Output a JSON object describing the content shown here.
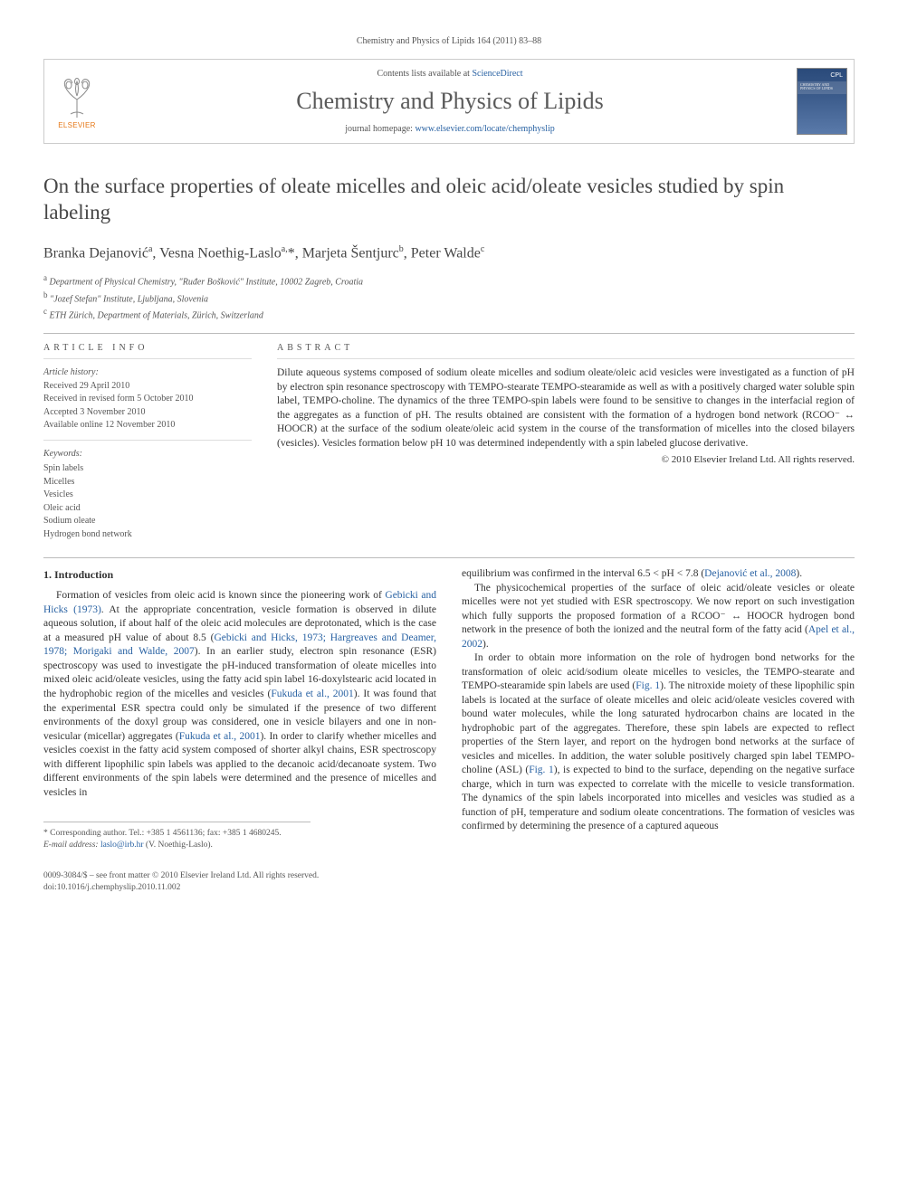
{
  "citation": "Chemistry and Physics of Lipids 164 (2011) 83–88",
  "header": {
    "contents_prefix": "Contents lists available at ",
    "contents_link": "ScienceDirect",
    "journal_title": "Chemistry and Physics of Lipids",
    "homepage_prefix": "journal homepage: ",
    "homepage_url": "www.elsevier.com/locate/chemphyslip",
    "elsevier_label": "ELSEVIER",
    "cover_cpl": "CPL",
    "cover_band": "CHEMISTRY AND PHYSICS OF LIPIDS"
  },
  "title": "On the surface properties of oleate micelles and oleic acid/oleate vesicles studied by spin labeling",
  "authors_html": "Branka Dejanović<sup>a</sup>, Vesna Noethig-Laslo<sup>a,</sup>*, Marjeta Šentjurc<sup>b</sup>, Peter Walde<sup>c</sup>",
  "affiliations": [
    {
      "label": "a",
      "text": "Department of Physical Chemistry, \"Ruđer Bošković\" Institute, 10002 Zagreb, Croatia"
    },
    {
      "label": "b",
      "text": "\"Jozef Stefan\" Institute, Ljubljana, Slovenia"
    },
    {
      "label": "c",
      "text": "ETH Zürich, Department of Materials, Zürich, Switzerland"
    }
  ],
  "article_info": {
    "heading": "ARTICLE INFO",
    "history_label": "Article history:",
    "history": [
      "Received 29 April 2010",
      "Received in revised form 5 October 2010",
      "Accepted 3 November 2010",
      "Available online 12 November 2010"
    ],
    "keywords_label": "Keywords:",
    "keywords": [
      "Spin labels",
      "Micelles",
      "Vesicles",
      "Oleic acid",
      "Sodium oleate",
      "Hydrogen bond network"
    ]
  },
  "abstract": {
    "heading": "ABSTRACT",
    "text": "Dilute aqueous systems composed of sodium oleate micelles and sodium oleate/oleic acid vesicles were investigated as a function of pH by electron spin resonance spectroscopy with TEMPO-stearate TEMPO-stearamide as well as with a positively charged water soluble spin label, TEMPO-choline. The dynamics of the three TEMPO-spin labels were found to be sensitive to changes in the interfacial region of the aggregates as a function of pH. The results obtained are consistent with the formation of a hydrogen bond network (RCOO⁻ ↔ HOOCR) at the surface of the sodium oleate/oleic acid system in the course of the transformation of micelles into the closed bilayers (vesicles). Vesicles formation below pH 10 was determined independently with a spin labeled glucose derivative.",
    "copyright": "© 2010 Elsevier Ireland Ltd. All rights reserved."
  },
  "body": {
    "section_heading": "1.  Introduction",
    "left_paragraphs": [
      "Formation of vesicles from oleic acid is known since the pioneering work of <span class=\"ref-link\">Gebicki and Hicks (1973)</span>. At the appropriate concentration, vesicle formation is observed in dilute aqueous solution, if about half of the oleic acid molecules are deprotonated, which is the case at a measured pH value of about 8.5 (<span class=\"ref-link\">Gebicki and Hicks, 1973; Hargreaves and Deamer, 1978; Morigaki and Walde, 2007</span>). In an earlier study, electron spin resonance (ESR) spectroscopy was used to investigate the pH-induced transformation of oleate micelles into mixed oleic acid/oleate vesicles, using the fatty acid spin label 16-doxylstearic acid located in the hydrophobic region of the micelles and vesicles (<span class=\"ref-link\">Fukuda et al., 2001</span>). It was found that the experimental ESR spectra could only be simulated if the presence of two different environments of the doxyl group was considered, one in vesicle bilayers and one in non-vesicular (micellar) aggregates (<span class=\"ref-link\">Fukuda et al., 2001</span>). In order to clarify whether micelles and vesicles coexist in the fatty acid system composed of shorter alkyl chains, ESR spectroscopy with different lipophilic spin labels was applied to the decanoic acid/decanoate system. Two different environments of the spin labels were determined and the presence of micelles and vesicles in"
    ],
    "right_paragraphs": [
      "equilibrium was confirmed in the interval 6.5 < pH < 7.8 (<span class=\"ref-link\">Dejanović et al., 2008</span>).",
      "The physicochemical properties of the surface of oleic acid/oleate vesicles or oleate micelles were not yet studied with ESR spectroscopy. We now report on such investigation which fully supports the proposed formation of a RCOO⁻ ↔ HOOCR hydrogen bond network in the presence of both the ionized and the neutral form of the fatty acid (<span class=\"ref-link\">Apel et al., 2002</span>).",
      "In order to obtain more information on the role of hydrogen bond networks for the transformation of oleic acid/sodium oleate micelles to vesicles, the TEMPO-stearate and TEMPO-stearamide spin labels are used (<span class=\"fig-link\">Fig. 1</span>). The nitroxide moiety of these lipophilic spin labels is located at the surface of oleate micelles and oleic acid/oleate vesicles covered with bound water molecules, while the long saturated hydrocarbon chains are located in the hydrophobic part of the aggregates. Therefore, these spin labels are expected to reflect properties of the Stern layer, and report on the hydrogen bond networks at the surface of vesicles and micelles. In addition, the water soluble positively charged spin label TEMPO-choline (ASL) (<span class=\"fig-link\">Fig. 1</span>), is expected to bind to the surface, depending on the negative surface charge, which in turn was expected to correlate with the micelle to vesicle transformation. The dynamics of the spin labels incorporated into micelles and vesicles was studied as a function of pH, temperature and sodium oleate concentrations. The formation of vesicles was confirmed by determining the presence of a captured aqueous"
    ]
  },
  "footnote": {
    "corr": "* Corresponding author. Tel.: +385 1 4561136; fax: +385 1 4680245.",
    "email_label": "E-mail address: ",
    "email": "laslo@irb.hr",
    "email_who": " (V. Noethig-Laslo)."
  },
  "footer": {
    "issn": "0009-3084/$ – see front matter © 2010 Elsevier Ireland Ltd. All rights reserved.",
    "doi": "doi:10.1016/j.chemphyslip.2010.11.002"
  },
  "colors": {
    "link": "#2962a3",
    "elsevier_orange": "#e67817",
    "text": "#333333",
    "muted": "#555555",
    "rule": "#bbbbbb"
  }
}
